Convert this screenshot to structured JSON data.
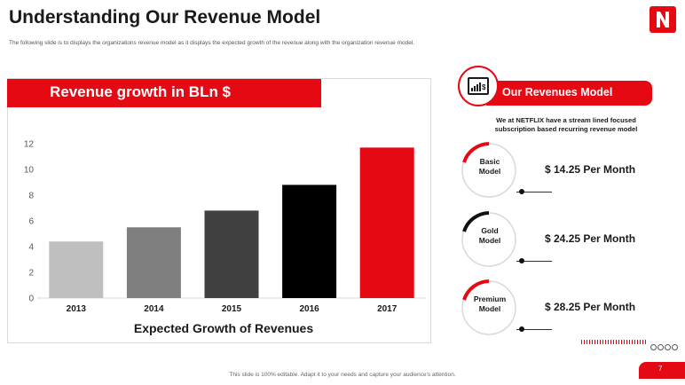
{
  "header": {
    "title": "Understanding Our Revenue Model",
    "subtitle": "The following slide is to displays the organizations revenue model as it displays the expected growth of the revenue along with the organization revenue model."
  },
  "chart_panel": {
    "banner": "Revenue growth in BLn $"
  },
  "chart_data": {
    "type": "bar",
    "title": "Revenue growth in BLn $",
    "xlabel": "Expected Growth of Revenues",
    "ylabel": "",
    "categories": [
      "2013",
      "2014",
      "2015",
      "2016",
      "2017"
    ],
    "values": [
      4.4,
      5.5,
      6.8,
      8.8,
      11.7
    ],
    "colors": [
      "#bfbfbf",
      "#7f7f7f",
      "#404040",
      "#000000",
      "#e50914"
    ],
    "ylim": [
      0,
      12
    ],
    "yticks": [
      "0",
      "2",
      "4",
      "6",
      "8",
      "10",
      "12"
    ],
    "grid": false
  },
  "revenue_model": {
    "banner": "Our Revenues Model",
    "description": "We at NETFLIX have a stream lined focused subscription based recurring revenue model",
    "plans": [
      {
        "name_line1": "Basic",
        "name_line2": "Model",
        "price": "$ 14.25 Per Month",
        "accent": "#e50914"
      },
      {
        "name_line1": "Gold",
        "name_line2": "Model",
        "price": "$ 24.25 Per Month",
        "accent": "#111111"
      },
      {
        "name_line1": "Premium",
        "name_line2": "Model",
        "price": "$ 28.25 Per Month",
        "accent": "#e50914"
      }
    ]
  },
  "footer": {
    "note": "This slide is 100% editable. Adapt it to your needs and capture your audience's attention.",
    "page_number": "7"
  },
  "brand": {
    "logo_icon": "netflix-logo-icon",
    "accent": "#e50914"
  }
}
